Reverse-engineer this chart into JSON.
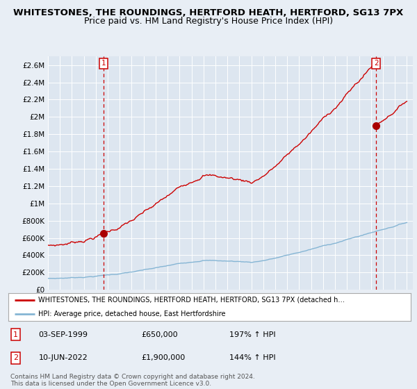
{
  "title": "WHITESTONES, THE ROUNDINGS, HERTFORD HEATH, HERTFORD, SG13 7PX",
  "subtitle": "Price paid vs. HM Land Registry's House Price Index (HPI)",
  "title_fontsize": 9.5,
  "subtitle_fontsize": 9,
  "bg_color": "#e8eef5",
  "plot_bg_color": "#dde6f0",
  "red_line_color": "#cc0000",
  "blue_line_color": "#85b5d4",
  "vline_color": "#cc0000",
  "marker_color": "#aa0000",
  "ylim": [
    0,
    2700000
  ],
  "yticks": [
    0,
    200000,
    400000,
    600000,
    800000,
    1000000,
    1200000,
    1400000,
    1600000,
    1800000,
    2000000,
    2200000,
    2400000,
    2600000
  ],
  "ytick_labels": [
    "£0",
    "£200K",
    "£400K",
    "£600K",
    "£800K",
    "£1M",
    "£1.2M",
    "£1.4M",
    "£1.6M",
    "£1.8M",
    "£2M",
    "£2.2M",
    "£2.4M",
    "£2.6M"
  ],
  "sale1_date": 1999.67,
  "sale1_price": 650000,
  "sale2_date": 2022.44,
  "sale2_price": 1900000,
  "legend_red": "WHITESTONES, THE ROUNDINGS, HERTFORD HEATH, HERTFORD, SG13 7PX (detached h…",
  "legend_blue": "HPI: Average price, detached house, East Hertfordshire",
  "table_rows": [
    [
      "1",
      "03-SEP-1999",
      "£650,000",
      "197% ↑ HPI"
    ],
    [
      "2",
      "10-JUN-2022",
      "£1,900,000",
      "144% ↑ HPI"
    ]
  ],
  "footer": "Contains HM Land Registry data © Crown copyright and database right 2024.\nThis data is licensed under the Open Government Licence v3.0."
}
